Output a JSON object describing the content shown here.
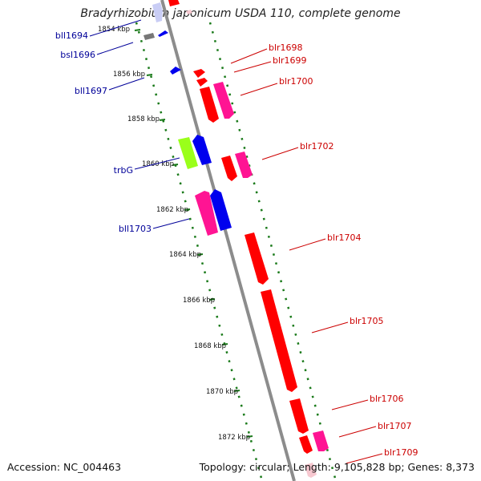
{
  "title": "Bradyrhizobium japonicum USDA 110, complete genome",
  "footer": {
    "accession": "Accession: NC_004463",
    "summary": "Topology: circular; Length: 9,105,828 bp; Genes: 8,373"
  },
  "colors": {
    "backbone": "#8c8c8c",
    "dots": "#1a7a1a",
    "forward_label": "#cc0000",
    "reverse_label": "#000099",
    "red": "#ff0000",
    "pink": "#ff1493",
    "blue": "#0000ee",
    "lime": "#9aff1a",
    "gray": "#777777",
    "faded_blue": "#c9cdf5",
    "faded_pink": "#f7c8d0"
  },
  "ticks": [
    "1854 kbp",
    "1856 kbp",
    "1858 kbp",
    "1860 kbp",
    "1862 kbp",
    "1864 kbp",
    "1866 kbp",
    "1868 kbp",
    "1870 kbp",
    "1872 kbp"
  ],
  "forward_genes": [
    "blr1698",
    "blr1699",
    "blr1700",
    "blr1702",
    "blr1704",
    "blr1705",
    "blr1706",
    "blr1707",
    "blr1709"
  ],
  "reverse_genes": [
    "bll1694",
    "bsl1696",
    "bll1697",
    "trbG",
    "bll1703"
  ]
}
